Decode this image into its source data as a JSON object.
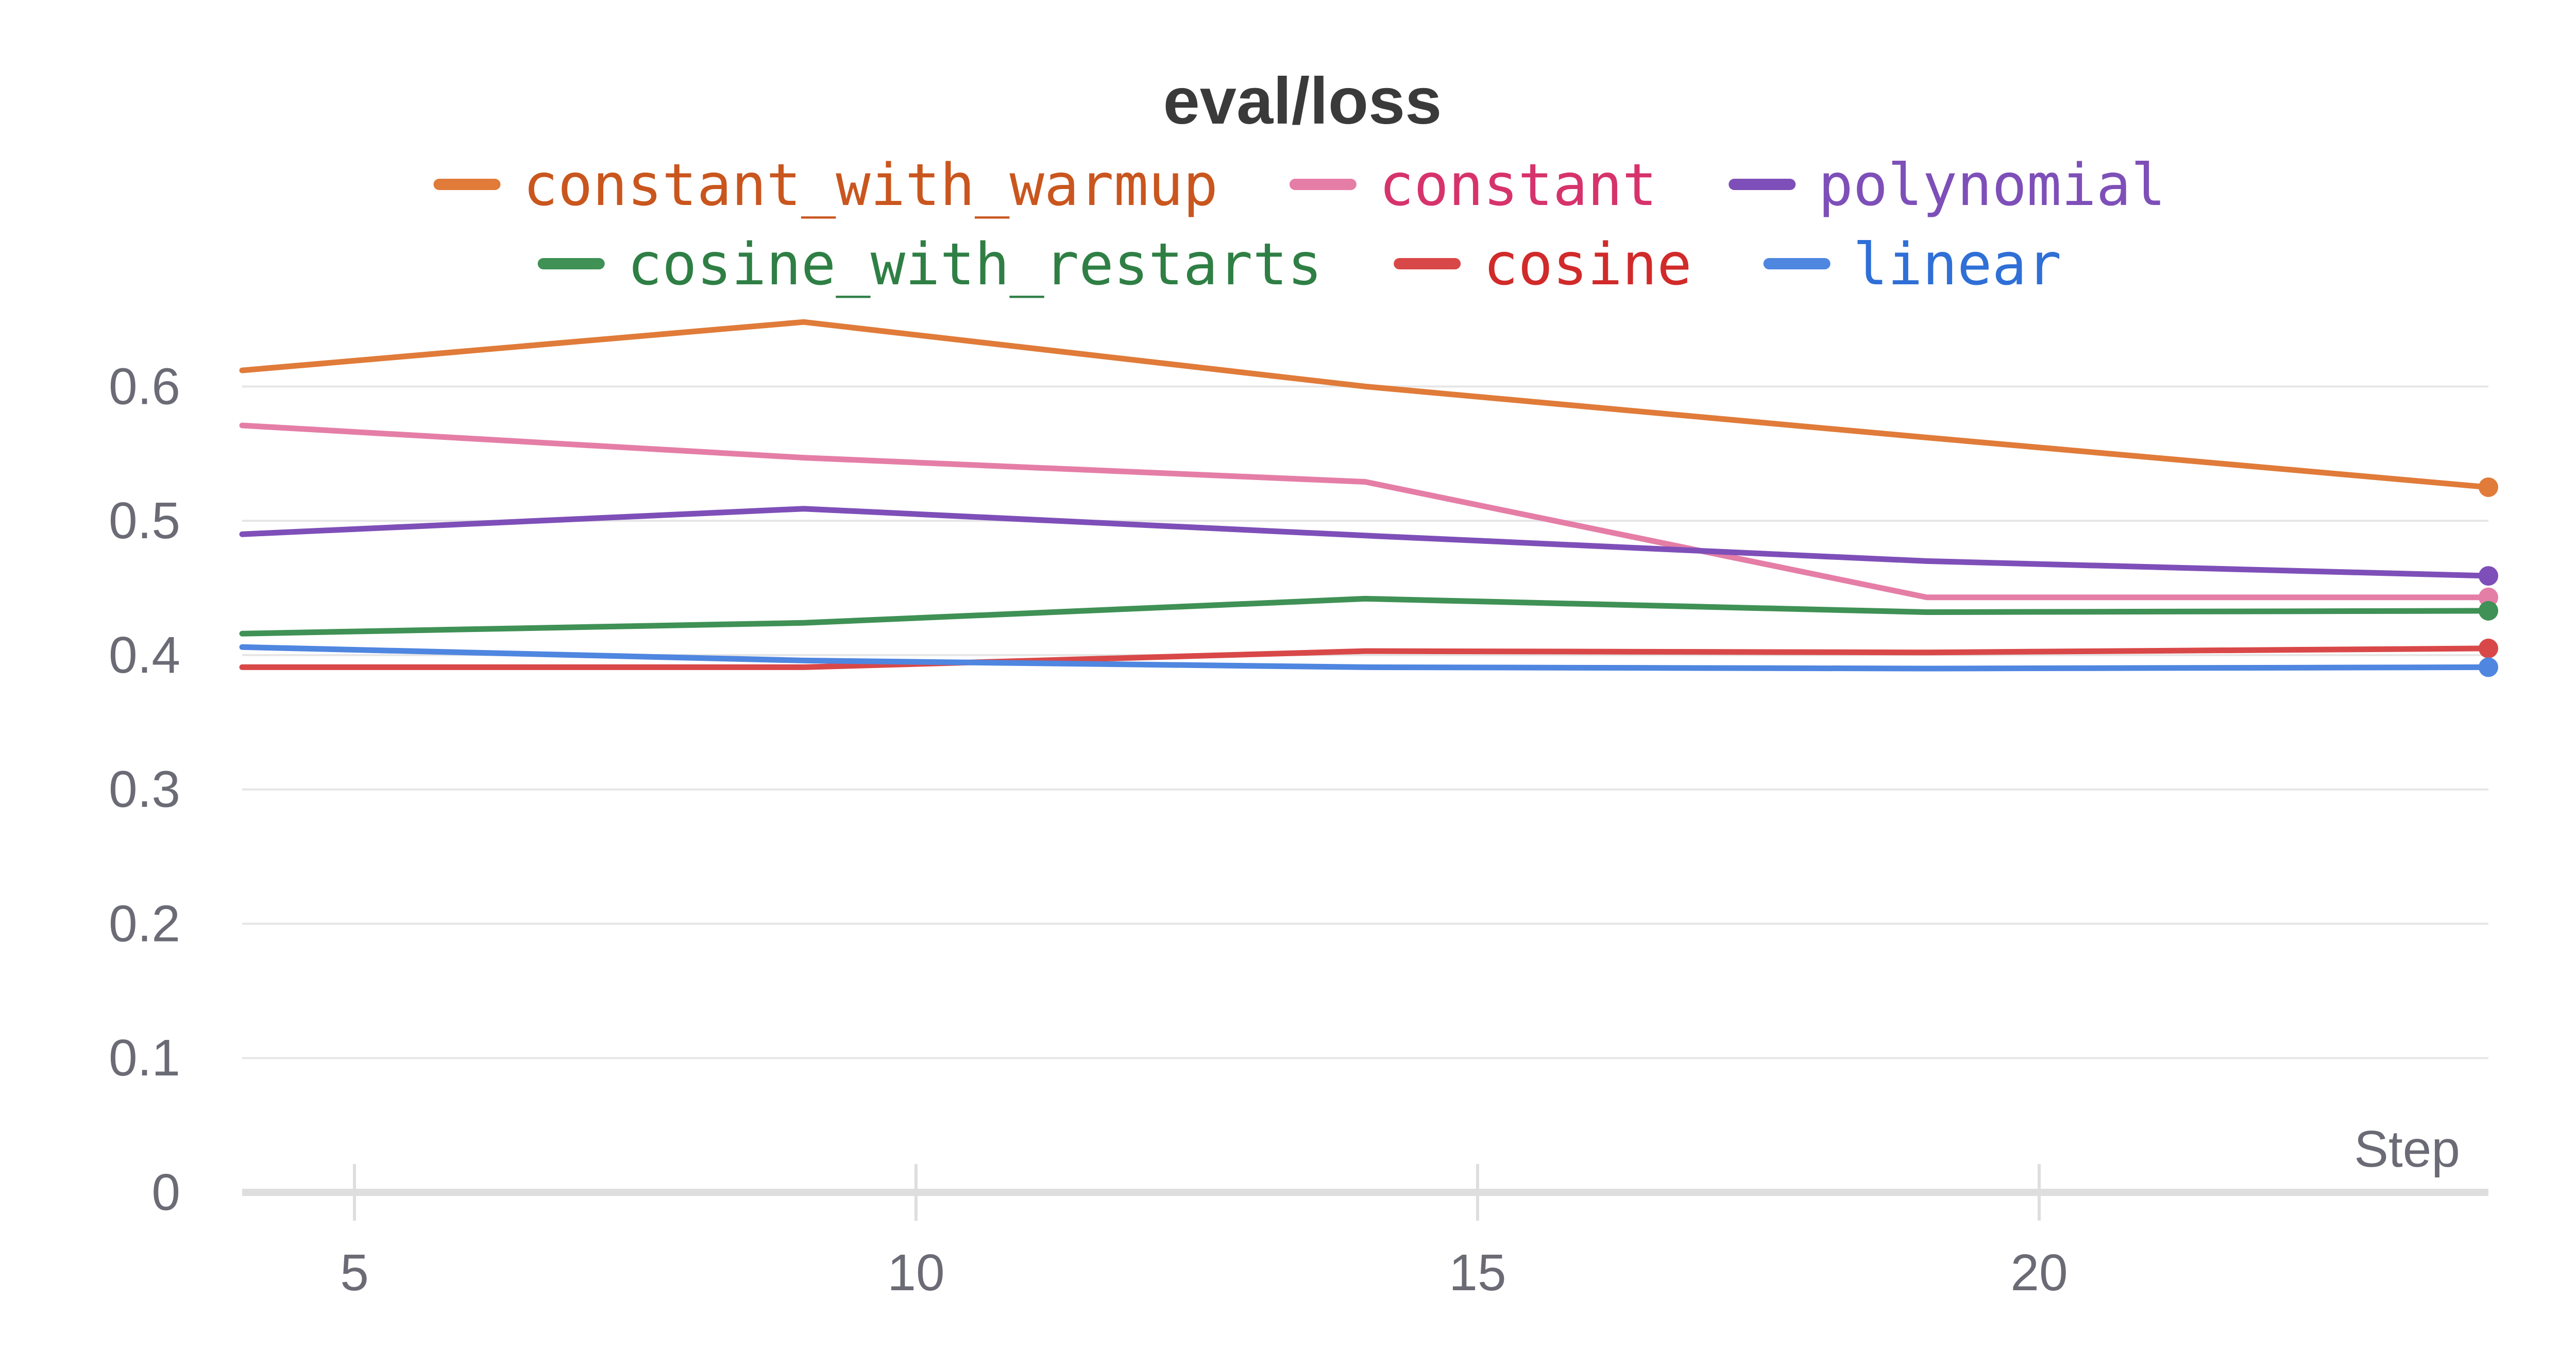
{
  "chart_data": {
    "type": "line",
    "title": "eval/loss",
    "xlabel": "Step",
    "ylabel": "",
    "xlim": [
      4,
      24
    ],
    "ylim": [
      0,
      0.65
    ],
    "x_ticks": [
      5,
      10,
      15,
      20
    ],
    "y_ticks": [
      0,
      0.1,
      0.2,
      0.3,
      0.4,
      0.5,
      0.6
    ],
    "x_tick_labels": [
      "5",
      "10",
      "15",
      "20"
    ],
    "y_tick_labels": [
      "0",
      "0.1",
      "0.2",
      "0.3",
      "0.4",
      "0.5",
      "0.6"
    ],
    "grid": true,
    "legend_position": "top",
    "series": [
      {
        "name": "constant_with_warmup",
        "color": "#e07b39",
        "text_color": "#c9561e",
        "x": [
          4,
          9,
          14,
          19,
          24
        ],
        "y": [
          0.612,
          0.648,
          0.6,
          0.562,
          0.525
        ]
      },
      {
        "name": "constant",
        "color": "#e57ea6",
        "text_color": "#d6336c",
        "x": [
          4,
          9,
          14,
          19,
          24
        ],
        "y": [
          0.571,
          0.547,
          0.529,
          0.443,
          0.443
        ]
      },
      {
        "name": "polynomial",
        "color": "#7e4fb8",
        "text_color": "#7e4fb8",
        "x": [
          4,
          9,
          14,
          19,
          24
        ],
        "y": [
          0.49,
          0.509,
          0.489,
          0.47,
          0.459
        ]
      },
      {
        "name": "cosine_with_restarts",
        "color": "#3f9155",
        "text_color": "#2f7f45",
        "x": [
          4,
          9,
          14,
          19,
          24
        ],
        "y": [
          0.416,
          0.424,
          0.442,
          0.432,
          0.433
        ]
      },
      {
        "name": "cosine",
        "color": "#d94848",
        "text_color": "#d12a2a",
        "x": [
          4,
          9,
          14,
          19,
          24
        ],
        "y": [
          0.391,
          0.391,
          0.403,
          0.402,
          0.405
        ]
      },
      {
        "name": "linear",
        "color": "#4f86e0",
        "text_color": "#2f6fd6",
        "x": [
          4,
          9,
          14,
          19,
          24
        ],
        "y": [
          0.406,
          0.396,
          0.391,
          0.39,
          0.391
        ]
      }
    ]
  }
}
